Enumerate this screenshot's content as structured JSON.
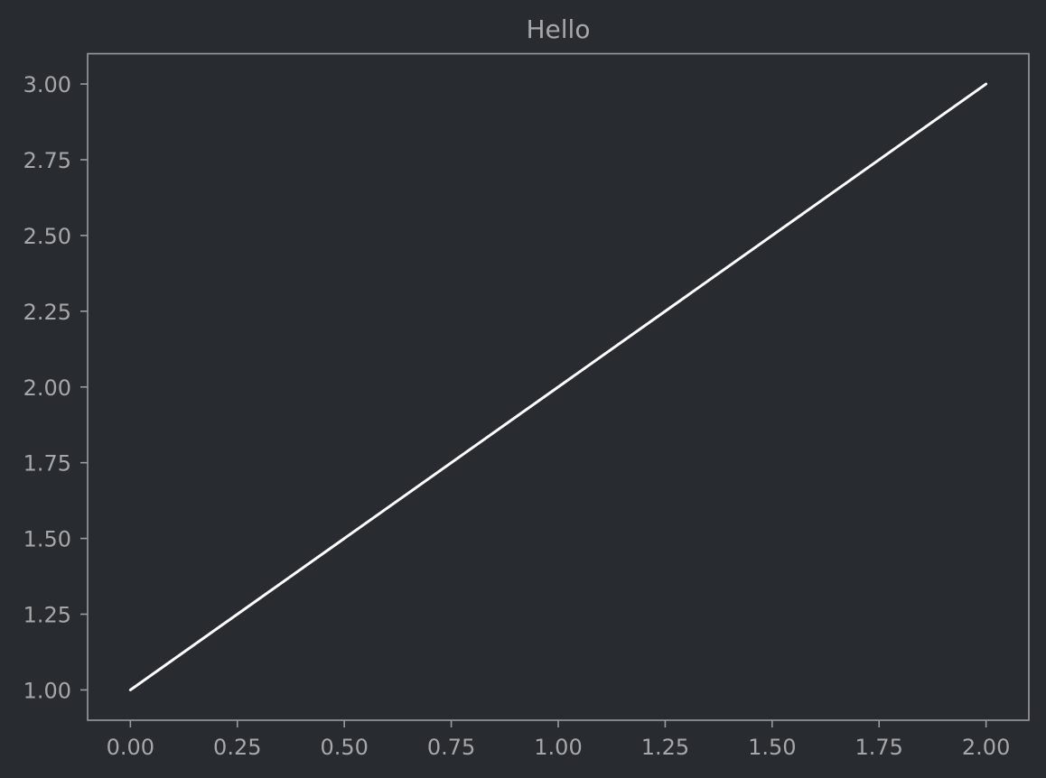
{
  "chart_data": {
    "type": "line",
    "title": "Hello",
    "xlabel": "",
    "ylabel": "",
    "xlim": [
      -0.1,
      2.1
    ],
    "ylim": [
      0.9,
      3.1
    ],
    "x_ticks": [
      "0.00",
      "0.25",
      "0.50",
      "0.75",
      "1.00",
      "1.25",
      "1.50",
      "1.75",
      "2.00"
    ],
    "y_ticks": [
      "1.00",
      "1.25",
      "1.50",
      "1.75",
      "2.00",
      "2.25",
      "2.50",
      "2.75",
      "3.00"
    ],
    "x": [
      0,
      1,
      2
    ],
    "series": [
      {
        "values": [
          1,
          2,
          3
        ]
      }
    ],
    "grid": false,
    "colors": {
      "background": "#282c31",
      "axes": "#9a9c9e",
      "text": "#a6a7a9",
      "line": "#ffffff"
    }
  }
}
